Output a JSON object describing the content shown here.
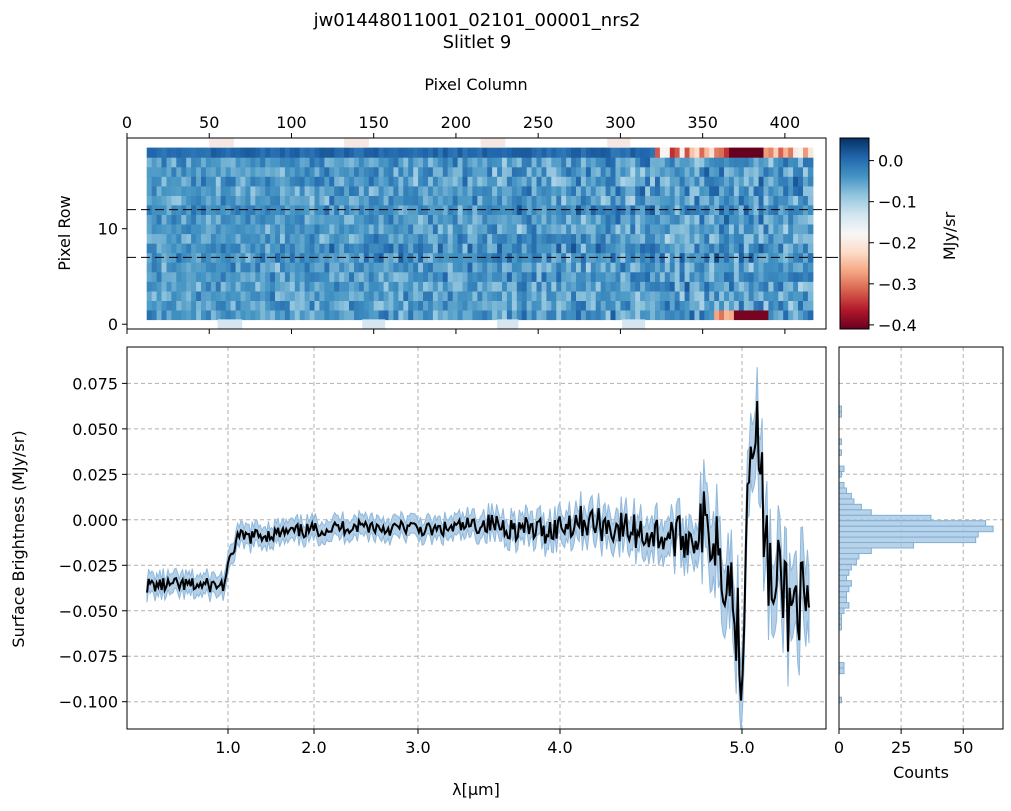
{
  "chart_data": [
    {
      "type": "heatmap",
      "title": "jw01448011001_02101_00001_nrs2",
      "subtitle": "Slitlet 9",
      "top_xlabel": "Pixel Column",
      "ylabel": "Pixel Row",
      "x_ticks": [
        0,
        50,
        100,
        150,
        200,
        250,
        300,
        350,
        400
      ],
      "y_ticks": [
        0,
        10
      ],
      "xlim": [
        0,
        425
      ],
      "ylim": [
        -0.5,
        19.5
      ],
      "extraction_rows": [
        7,
        12
      ],
      "colorbar": {
        "label": "MJy/sr",
        "ticks": [
          "0.0",
          "−0.1",
          "−0.2",
          "−0.3",
          "−0.4"
        ],
        "tick_values": [
          0.0,
          -0.1,
          -0.2,
          -0.3,
          -0.4
        ],
        "range": [
          -0.41,
          0.055
        ],
        "colormap": [
          "#67001f",
          "#b2182b",
          "#d6604d",
          "#f4a582",
          "#fddbc7",
          "#f7f7f7",
          "#d1e5f0",
          "#92c5de",
          "#4393c3",
          "#2166ac",
          "#053061"
        ]
      }
    },
    {
      "type": "line",
      "xlabel": "λ[μm]",
      "ylabel": "Surface Brightness (MJy/sr)",
      "x_ticks": [
        "1.0",
        "2.0",
        "3.0",
        "4.0",
        "5.0"
      ],
      "x_tick_values": [
        1.0,
        2.0,
        3.0,
        4.0,
        5.0
      ],
      "y_ticks": [
        "0.075",
        "0.050",
        "0.025",
        "0.000",
        "−0.025",
        "−0.050",
        "−0.075",
        "−0.100"
      ],
      "y_tick_values": [
        0.075,
        0.05,
        0.025,
        0.0,
        -0.025,
        -0.05,
        -0.075,
        -0.1
      ],
      "ylim": [
        -0.115,
        0.095
      ],
      "grid": true,
      "line_color": "#000000",
      "band_color": "#a6c8e4",
      "series": [
        {
          "name": "spectrum",
          "x": [
            0.95,
            1.1,
            1.3,
            1.5,
            1.7,
            1.9,
            2.1,
            2.3,
            2.5,
            2.7,
            2.9,
            3.1,
            3.3,
            3.5,
            3.7,
            3.9,
            4.1,
            4.3,
            4.5,
            4.7,
            4.85,
            4.95,
            5.0,
            5.05,
            5.1,
            5.15,
            5.2,
            5.25,
            5.3,
            5.35,
            5.4,
            5.45,
            5.5,
            5.55,
            5.6
          ],
          "values": [
            -0.036,
            -0.01,
            -0.009,
            -0.008,
            -0.007,
            -0.006,
            -0.005,
            -0.004,
            -0.003,
            -0.005,
            -0.004,
            -0.006,
            -0.004,
            -0.002,
            -0.005,
            -0.006,
            0.0,
            -0.004,
            -0.008,
            -0.01,
            -0.005,
            -0.04,
            -0.08,
            0.02,
            0.063,
            0.04,
            0.0,
            -0.03,
            -0.05,
            -0.03,
            -0.04,
            -0.055,
            -0.035,
            -0.05,
            -0.057
          ]
        }
      ]
    },
    {
      "type": "bar",
      "orientation": "horizontal",
      "xlabel": "Counts",
      "x_ticks": [
        "0",
        "25",
        "50"
      ],
      "x_tick_values": [
        0,
        25,
        50
      ],
      "xlim": [
        0,
        66
      ],
      "bar_color": "#a6c8e4",
      "bins": [
        {
          "y": 0.061,
          "count": 1
        },
        {
          "y": 0.058,
          "count": 1
        },
        {
          "y": 0.043,
          "count": 1
        },
        {
          "y": 0.037,
          "count": 1
        },
        {
          "y": 0.028,
          "count": 2
        },
        {
          "y": 0.025,
          "count": 1
        },
        {
          "y": 0.019,
          "count": 2
        },
        {
          "y": 0.016,
          "count": 3
        },
        {
          "y": 0.013,
          "count": 5
        },
        {
          "y": 0.01,
          "count": 6
        },
        {
          "y": 0.007,
          "count": 9
        },
        {
          "y": 0.004,
          "count": 13
        },
        {
          "y": 0.001,
          "count": 37
        },
        {
          "y": -0.002,
          "count": 59
        },
        {
          "y": -0.005,
          "count": 62
        },
        {
          "y": -0.008,
          "count": 56
        },
        {
          "y": -0.011,
          "count": 55
        },
        {
          "y": -0.014,
          "count": 30
        },
        {
          "y": -0.017,
          "count": 13
        },
        {
          "y": -0.02,
          "count": 8
        },
        {
          "y": -0.023,
          "count": 7
        },
        {
          "y": -0.026,
          "count": 5
        },
        {
          "y": -0.029,
          "count": 4
        },
        {
          "y": -0.032,
          "count": 3
        },
        {
          "y": -0.035,
          "count": 5
        },
        {
          "y": -0.038,
          "count": 4
        },
        {
          "y": -0.041,
          "count": 3
        },
        {
          "y": -0.044,
          "count": 3
        },
        {
          "y": -0.047,
          "count": 4
        },
        {
          "y": -0.05,
          "count": 2
        },
        {
          "y": -0.053,
          "count": 1
        },
        {
          "y": -0.056,
          "count": 1
        },
        {
          "y": -0.059,
          "count": 1
        },
        {
          "y": -0.08,
          "count": 2
        },
        {
          "y": -0.083,
          "count": 2
        },
        {
          "y": -0.099,
          "count": 1
        }
      ]
    }
  ]
}
